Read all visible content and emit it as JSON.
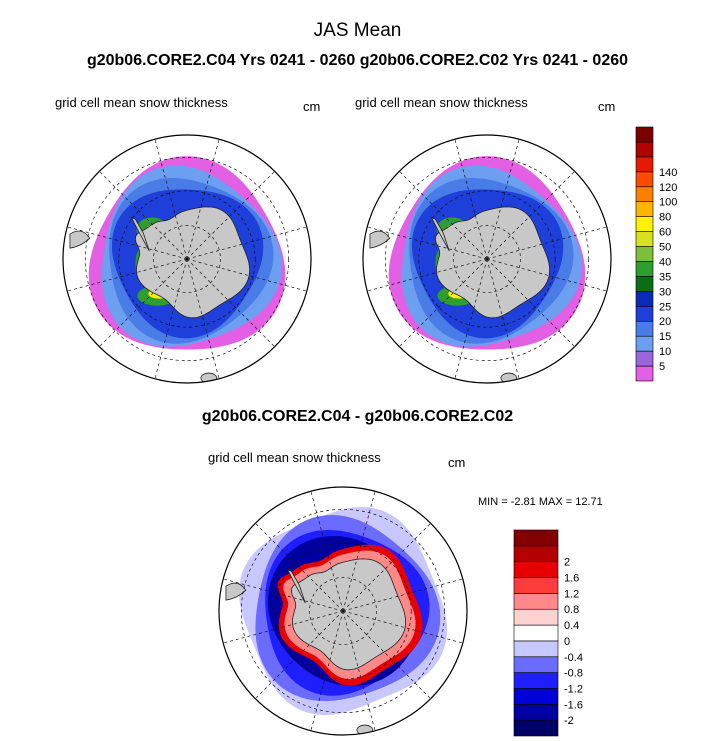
{
  "header": {
    "title": "JAS Mean",
    "subtitle": "g20b06.CORE2.C04  Yrs 0241 - 0260 g20b06.CORE2.C02  Yrs 0241 - 0260",
    "diff_title": "g20b06.CORE2.C04 - g20b06.CORE2.C02"
  },
  "panels": {
    "left": {
      "label": "grid cell mean snow thickness",
      "unit": "cm"
    },
    "right": {
      "label": "grid cell mean snow thickness",
      "unit": "cm"
    },
    "diff": {
      "label": "grid cell mean snow thickness",
      "unit": "cm",
      "minmax": "MIN =  -2.81 MAX =  12.71"
    }
  },
  "chart_data": [
    {
      "type": "heatmap",
      "projection": "south-polar-stereographic",
      "panel": "left",
      "colorbar": {
        "labels": [
          "5",
          "10",
          "15",
          "20",
          "25",
          "30",
          "35",
          "40",
          "50",
          "60",
          "80",
          "100",
          "120",
          "140"
        ],
        "colors": [
          "#e35fe3",
          "#9966dd",
          "#6d9ff0",
          "#4a7ce8",
          "#1e3fd9",
          "#0a2ab8",
          "#0b6e14",
          "#2e9e2e",
          "#7cbf3a",
          "#d8e021",
          "#fff200",
          "#ffb400",
          "#ff8000",
          "#ff4a00",
          "#e61a00",
          "#b00000",
          "#7a0000"
        ]
      }
    },
    {
      "type": "heatmap",
      "projection": "south-polar-stereographic",
      "panel": "right"
    },
    {
      "type": "heatmap",
      "projection": "south-polar-stereographic",
      "panel": "diff",
      "min": -2.81,
      "max": 12.71,
      "colorbar": {
        "labels": [
          "-2",
          "-1.6",
          "-1.2",
          "-0.8",
          "-0.4",
          "0",
          "0.4",
          "0.8",
          "1.2",
          "1.6",
          "2"
        ],
        "colors": [
          "#000066",
          "#0000a0",
          "#0000d8",
          "#1e1eff",
          "#6b6bff",
          "#c8c8ff",
          "#ffffff",
          "#ffd2d2",
          "#ff8888",
          "#ff3c3c",
          "#e60000",
          "#b40000",
          "#820000"
        ]
      }
    }
  ]
}
